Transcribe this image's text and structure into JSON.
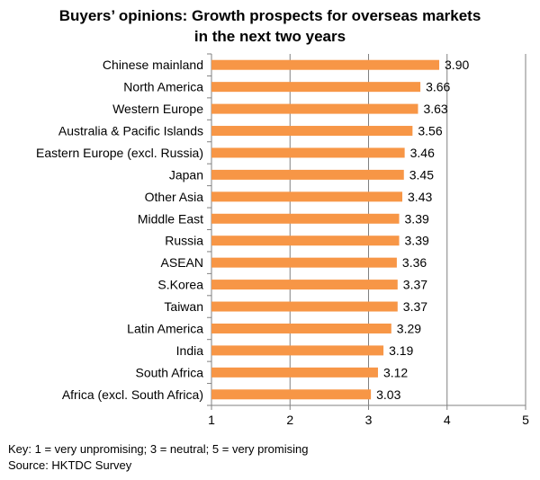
{
  "chart_data": {
    "type": "bar",
    "orientation": "horizontal",
    "title_lines": [
      "Buyers’ opinions: Growth prospects for overseas markets",
      "in the next two years"
    ],
    "categories": [
      "Chinese mainland",
      "North America",
      "Western Europe",
      "Australia & Pacific Islands",
      "Eastern Europe (excl. Russia)",
      "Japan",
      "Other Asia",
      "Middle East",
      "Russia",
      "ASEAN",
      "S.Korea",
      "Taiwan",
      "Latin America",
      "India",
      "South Africa",
      "Africa (excl. South Africa)"
    ],
    "values": [
      3.9,
      3.66,
      3.63,
      3.56,
      3.46,
      3.45,
      3.43,
      3.39,
      3.39,
      3.36,
      3.37,
      3.37,
      3.29,
      3.19,
      3.12,
      3.03
    ],
    "value_labels": [
      "3.90",
      "3.66",
      "3.63",
      "3.56",
      "3.46",
      "3.45",
      "3.43",
      "3.39",
      "3.39",
      "3.36",
      "3.37",
      "3.37",
      "3.29",
      "3.19",
      "3.12",
      "3.03"
    ],
    "xlim": [
      1,
      5
    ],
    "xticks": [
      "1",
      "2",
      "3",
      "4",
      "5"
    ],
    "grid": true,
    "bar_color": "#F79646",
    "grid_color": "#808080"
  },
  "footer": {
    "key": "Key: 1 = very unpromising; 3 = neutral; 5 = very promising",
    "source": "Source: HKTDC Survey"
  }
}
